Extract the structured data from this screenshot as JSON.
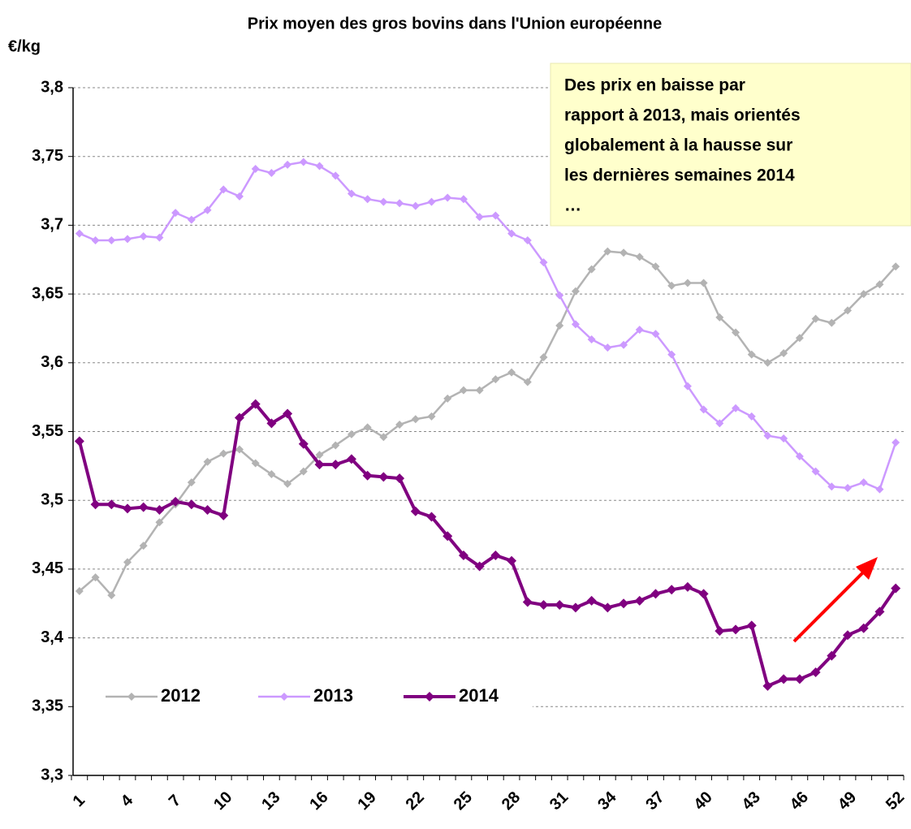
{
  "chart_data": {
    "type": "line",
    "title": "Prix moyen des gros bovins dans l'Union européenne",
    "y_label": "€/kg",
    "annotation": [
      "Des prix en baisse par",
      "rapport à 2013, mais orientés",
      "globalement à la hausse sur",
      "les dernières semaines 2014",
      "…"
    ],
    "categories": [
      "1",
      null,
      null,
      "4",
      null,
      null,
      "7",
      null,
      null,
      "10",
      null,
      null,
      "13",
      null,
      null,
      "16",
      null,
      null,
      "19",
      null,
      null,
      "22",
      null,
      null,
      "25",
      null,
      null,
      "28",
      null,
      null,
      "31",
      null,
      null,
      "34",
      null,
      null,
      "37",
      null,
      null,
      "40",
      null,
      null,
      "43",
      null,
      null,
      "46",
      null,
      null,
      "49",
      null,
      null,
      "52"
    ],
    "series": [
      {
        "name": "2012",
        "color": "#b3b3b3",
        "values": [
          3.434,
          3.444,
          3.431,
          3.455,
          3.467,
          3.484,
          3.497,
          3.513,
          3.528,
          3.534,
          3.537,
          3.527,
          3.519,
          3.512,
          3.521,
          3.533,
          3.54,
          3.548,
          3.553,
          3.546,
          3.555,
          3.559,
          3.561,
          3.574,
          3.58,
          3.58,
          3.588,
          3.593,
          3.586,
          3.604,
          3.627,
          3.652,
          3.668,
          3.681,
          3.68,
          3.677,
          3.67,
          3.656,
          3.658,
          3.658,
          3.633,
          3.622,
          3.606,
          3.6,
          3.607,
          3.618,
          3.632,
          3.629,
          3.638,
          3.65,
          3.657,
          3.67
        ]
      },
      {
        "name": "2013",
        "color": "#cc99ff",
        "values": [
          3.694,
          3.689,
          3.689,
          3.69,
          3.692,
          3.691,
          3.709,
          3.704,
          3.711,
          3.726,
          3.721,
          3.741,
          3.738,
          3.744,
          3.746,
          3.743,
          3.736,
          3.723,
          3.719,
          3.717,
          3.716,
          3.714,
          3.717,
          3.72,
          3.719,
          3.706,
          3.707,
          3.694,
          3.689,
          3.673,
          3.649,
          3.628,
          3.617,
          3.611,
          3.613,
          3.624,
          3.621,
          3.606,
          3.583,
          3.566,
          3.556,
          3.567,
          3.561,
          3.547,
          3.545,
          3.532,
          3.521,
          3.51,
          3.509,
          3.513,
          3.508,
          3.542
        ]
      },
      {
        "name": "2014",
        "color": "#800080",
        "values": [
          3.543,
          3.497,
          3.497,
          3.494,
          3.495,
          3.493,
          3.499,
          3.497,
          3.493,
          3.489,
          3.56,
          3.57,
          3.556,
          3.563,
          3.541,
          3.526,
          3.526,
          3.53,
          3.518,
          3.517,
          3.516,
          3.492,
          3.488,
          3.474,
          3.46,
          3.452,
          3.46,
          3.456,
          3.426,
          3.424,
          3.424,
          3.422,
          3.427,
          3.422,
          3.425,
          3.427,
          3.432,
          3.435,
          3.437,
          3.432,
          3.405,
          3.406,
          3.409,
          3.365,
          3.37,
          3.37,
          3.375,
          3.387,
          3.402,
          3.407,
          3.419,
          3.436
        ]
      }
    ],
    "ylim": [
      3.3,
      3.8
    ],
    "yticks": [
      {
        "value": 3.3,
        "label": "3,3"
      },
      {
        "value": 3.35,
        "label": "3,35"
      },
      {
        "value": 3.4,
        "label": "3,4"
      },
      {
        "value": 3.45,
        "label": "3,45"
      },
      {
        "value": 3.5,
        "label": "3,5"
      },
      {
        "value": 3.55,
        "label": "3,55"
      },
      {
        "value": 3.6,
        "label": "3,6"
      },
      {
        "value": 3.65,
        "label": "3,65"
      },
      {
        "value": 3.7,
        "label": "3,7"
      },
      {
        "value": 3.75,
        "label": "3,75"
      },
      {
        "value": 3.8,
        "label": "3,8"
      }
    ],
    "grid": true
  }
}
